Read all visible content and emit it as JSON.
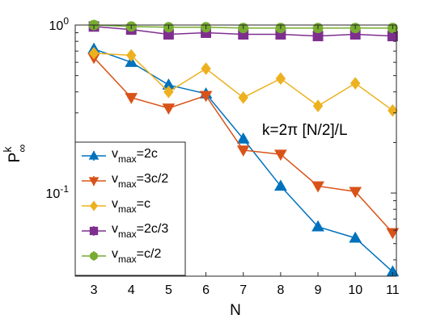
{
  "chart_data": {
    "type": "line",
    "xscale": "linear",
    "yscale": "log",
    "xlim": [
      2.5,
      11.1
    ],
    "ylim": [
      0.032,
      1.0
    ],
    "xticks": [
      3,
      4,
      5,
      6,
      7,
      8,
      9,
      10,
      11
    ],
    "xtick_labels": [
      "3",
      "4",
      "5",
      "6",
      "7",
      "8",
      "9",
      "10",
      "11"
    ],
    "yticks": [
      1.0,
      0.1
    ],
    "ytick_labels": [
      {
        "base": "10",
        "exp": "0"
      },
      {
        "base": "10",
        "exp": "-1"
      }
    ],
    "xlabel": "N",
    "ylabel": {
      "base": "P",
      "sup": "k",
      "sub": "∞"
    },
    "annotation": "k=2π [N/2]/L",
    "grid": false,
    "legend_position": "bottom-left",
    "x": [
      3,
      4,
      5,
      6,
      7,
      8,
      9,
      10,
      11
    ],
    "series": [
      {
        "name": "v_max=2c",
        "legend_base": "v",
        "legend_sub": "max",
        "legend_rest": "=2c",
        "color": "#0072BD",
        "marker": "triangle-up",
        "values": [
          0.72,
          0.6,
          0.44,
          0.39,
          0.21,
          0.11,
          0.063,
          0.054,
          0.034
        ]
      },
      {
        "name": "v_max=3c/2",
        "legend_base": "v",
        "legend_sub": "max",
        "legend_rest": "=3c/2",
        "color": "#D95319",
        "marker": "triangle-down",
        "values": [
          0.64,
          0.37,
          0.32,
          0.38,
          0.18,
          0.17,
          0.11,
          0.102,
          0.058
        ]
      },
      {
        "name": "v_max=c",
        "legend_base": "v",
        "legend_sub": "max",
        "legend_rest": "=c",
        "color": "#EDB120",
        "marker": "diamond",
        "values": [
          0.68,
          0.66,
          0.4,
          0.55,
          0.37,
          0.48,
          0.33,
          0.45,
          0.31
        ]
      },
      {
        "name": "v_max=2c/3",
        "legend_base": "v",
        "legend_sub": "max",
        "legend_rest": "=2c/3",
        "color": "#7E2F8E",
        "marker": "square",
        "values": [
          0.98,
          0.94,
          0.88,
          0.9,
          0.88,
          0.88,
          0.86,
          0.88,
          0.86
        ]
      },
      {
        "name": "v_max=c/2",
        "legend_base": "v",
        "legend_sub": "max",
        "legend_rest": "=c/2",
        "color": "#77AC30",
        "marker": "circle",
        "values": [
          1.0,
          0.98,
          0.97,
          0.97,
          0.96,
          0.96,
          0.96,
          0.96,
          0.96
        ]
      }
    ]
  }
}
